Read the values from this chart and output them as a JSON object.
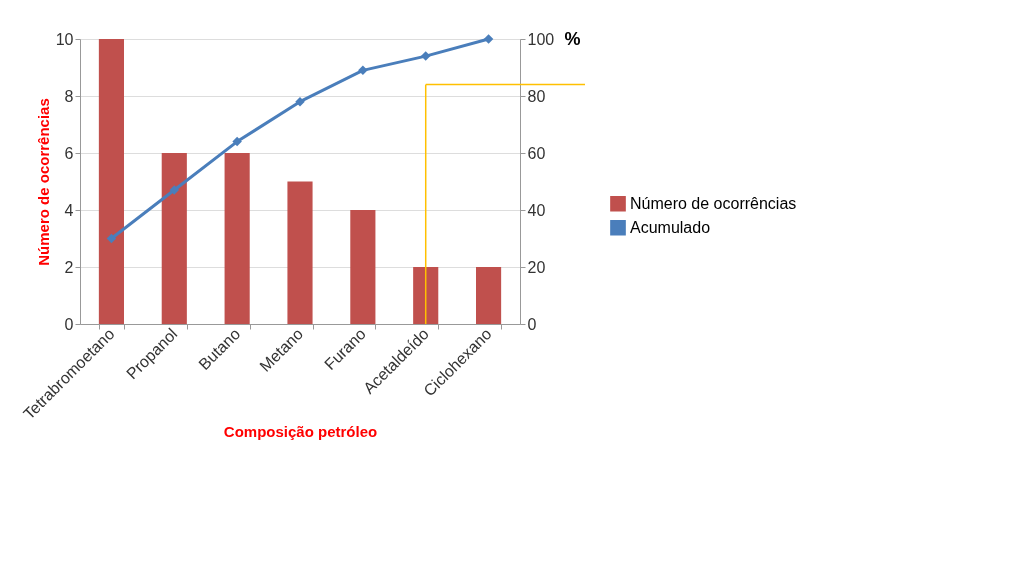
{
  "chart_data": {
    "type": "bar",
    "xlabel": "Composição petróleo",
    "ylabel": "Número de ocorrências",
    "y2label": "%",
    "categories": [
      "Tetrabromoetano",
      "Propanol",
      "Butano",
      "Metano",
      "Furano",
      "Acetaldeído",
      "Ciclohexano"
    ],
    "series": [
      {
        "name": "Número de ocorrências",
        "color": "#c0504d",
        "values": [
          10,
          6,
          6,
          5,
          4,
          2,
          2
        ]
      },
      {
        "name": "Acumulado",
        "type": "line",
        "axis": "y2",
        "color": "#4a7ebb",
        "values": [
          30,
          47,
          64,
          78,
          89,
          94,
          100
        ]
      }
    ],
    "ylim": [
      0,
      10
    ],
    "yticks": [
      0,
      2,
      4,
      6,
      8,
      10
    ],
    "y2lim": [
      0,
      100
    ],
    "y2ticks": [
      0,
      20,
      40,
      60,
      80,
      100
    ],
    "ref_lines": [
      {
        "axis": "y2",
        "value": 84,
        "color": "#ffc000"
      },
      {
        "axis": "x",
        "value": "Acetaldeído",
        "color": "#ffc000"
      }
    ],
    "grid": "y",
    "legend": "right",
    "marker": "diamond"
  }
}
